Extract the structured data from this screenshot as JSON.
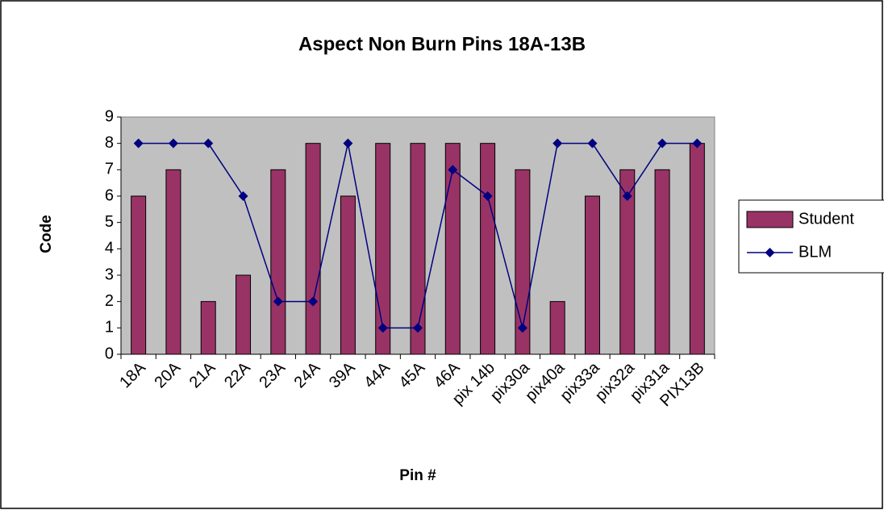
{
  "chart_data": {
    "type": "bar_line",
    "title": "Aspect Non Burn Pins 18A-13B",
    "x_label": "Pin #",
    "y_label": "Code",
    "categories": [
      "18A",
      "20A",
      "21A",
      "22A",
      "23A",
      "24A",
      "39A",
      "44A",
      "45A",
      "46A",
      "pix 14b",
      "pix30a",
      "pix40a",
      "pix33a",
      "pix32a",
      "pix31a",
      "PIX13B"
    ],
    "series": [
      {
        "name": "Student",
        "type": "bar",
        "color": "#993366",
        "values": [
          6,
          7,
          2,
          3,
          7,
          8,
          6,
          8,
          8,
          8,
          8,
          7,
          2,
          6,
          7,
          7,
          8
        ]
      },
      {
        "name": "BLM",
        "type": "line",
        "color": "#000080",
        "values": [
          8,
          8,
          8,
          6,
          2,
          2,
          8,
          1,
          1,
          7,
          6,
          1,
          8,
          8,
          6,
          8,
          8
        ]
      }
    ],
    "ylim": [
      0,
      9
    ],
    "yticks": [
      0,
      1,
      2,
      3,
      4,
      5,
      6,
      7,
      8,
      9
    ],
    "grid": false,
    "legend": "right"
  }
}
